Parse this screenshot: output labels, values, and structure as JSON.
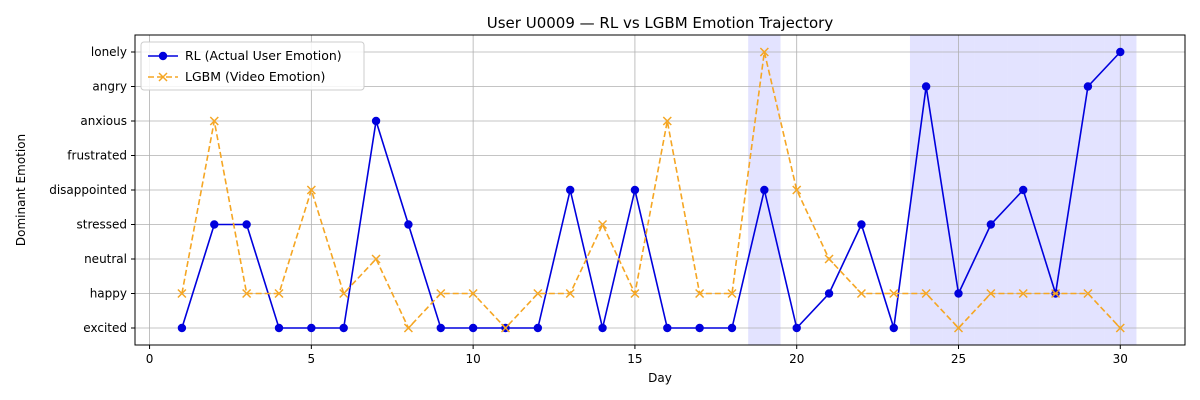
{
  "chart_data": {
    "type": "line",
    "title": "User U0009 — RL vs LGBM Emotion Trajectory",
    "xlabel": "Day",
    "ylabel": "Dominant Emotion",
    "xlim": [
      -0.45,
      32.0
    ],
    "x_ticks": [
      0,
      5,
      10,
      15,
      20,
      25,
      30
    ],
    "categories_y": [
      "excited",
      "happy",
      "neutral",
      "stressed",
      "disappointed",
      "frustrated",
      "anxious",
      "angry",
      "lonely"
    ],
    "grid": true,
    "legend_position": "top-left",
    "x": [
      1,
      2,
      3,
      4,
      5,
      6,
      7,
      8,
      9,
      10,
      11,
      12,
      13,
      14,
      15,
      16,
      17,
      18,
      19,
      20,
      21,
      22,
      23,
      24,
      25,
      26,
      27,
      28,
      29,
      30
    ],
    "series": [
      {
        "name": "RL (Actual User Emotion)",
        "color": "#0000dd",
        "style": "solid",
        "marker": "circle",
        "values": [
          "excited",
          "stressed",
          "stressed",
          "excited",
          "excited",
          "excited",
          "anxious",
          "stressed",
          "excited",
          "excited",
          "excited",
          "excited",
          "disappointed",
          "excited",
          "disappointed",
          "excited",
          "excited",
          "excited",
          "disappointed",
          "excited",
          "happy",
          "stressed",
          "excited",
          "angry",
          "happy",
          "stressed",
          "disappointed",
          "happy",
          "angry",
          "lonely"
        ]
      },
      {
        "name": "LGBM (Video Emotion)",
        "color": "#f5a623",
        "style": "dashed",
        "marker": "x",
        "values": [
          "happy",
          "anxious",
          "happy",
          "happy",
          "disappointed",
          "happy",
          "neutral",
          "excited",
          "happy",
          "happy",
          "excited",
          "happy",
          "happy",
          "stressed",
          "happy",
          "anxious",
          "happy",
          "happy",
          "lonely",
          "disappointed",
          "neutral",
          "happy",
          "happy",
          "happy",
          "excited",
          "happy",
          "happy",
          "happy",
          "happy",
          "excited"
        ]
      }
    ],
    "highlight_spans": [
      [
        18.5,
        19.5
      ],
      [
        23.5,
        24.5
      ],
      [
        24.5,
        25.5
      ],
      [
        25.5,
        26.5
      ],
      [
        26.5,
        27.5
      ],
      [
        27.5,
        28.5
      ],
      [
        28.5,
        29.5
      ],
      [
        29.5,
        30.5
      ]
    ],
    "highlight_color": "#b8b8ff"
  }
}
